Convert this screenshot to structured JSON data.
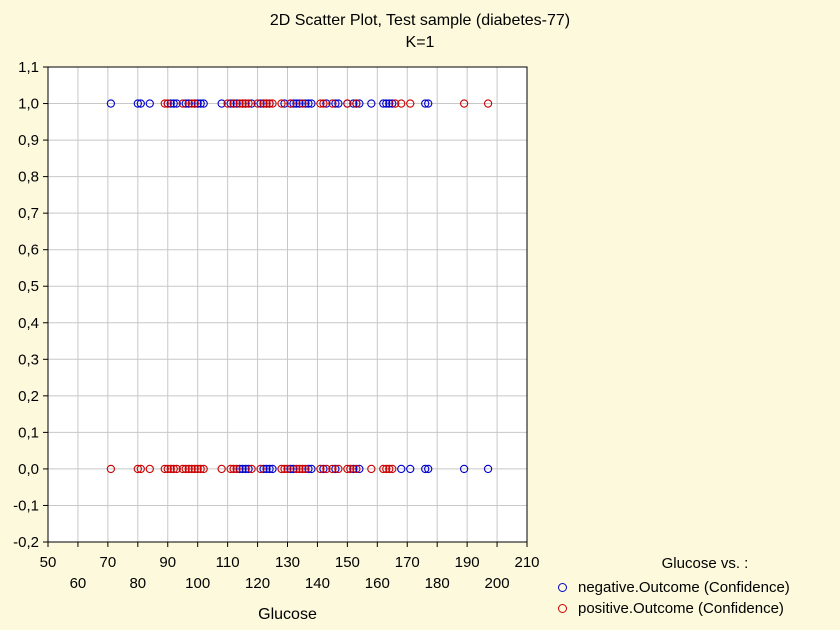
{
  "chart_data": {
    "type": "scatter",
    "title": "2D Scatter Plot, Test sample (diabetes-77)",
    "subtitle": "K=1",
    "xlabel": "Glucose",
    "ylabel": "",
    "xlim": [
      50,
      210
    ],
    "ylim": [
      -0.2,
      1.1
    ],
    "xticks_upper": [
      50,
      70,
      90,
      110,
      130,
      150,
      170,
      190,
      210
    ],
    "xticks_lower": [
      60,
      80,
      100,
      120,
      140,
      160,
      180,
      200
    ],
    "yticks": [
      "-0,2",
      "-0,1",
      "0,0",
      "0,1",
      "0,2",
      "0,3",
      "0,4",
      "0,5",
      "0,6",
      "0,7",
      "0,8",
      "0,9",
      "1,0",
      "1,1"
    ],
    "grid": true,
    "legend_title": "Glucose  vs. :",
    "legend_position": "bottom-right",
    "series": [
      {
        "name": "negative.Outcome (Confidence)",
        "color": "#0000cc",
        "points": [
          [
            71,
            1
          ],
          [
            80,
            1
          ],
          [
            81,
            1
          ],
          [
            84,
            1
          ],
          [
            90,
            1
          ],
          [
            91,
            1
          ],
          [
            92,
            1
          ],
          [
            93,
            1
          ],
          [
            96,
            1
          ],
          [
            97,
            1
          ],
          [
            99,
            1
          ],
          [
            100,
            1
          ],
          [
            101,
            1
          ],
          [
            102,
            1
          ],
          [
            108,
            1
          ],
          [
            111,
            1
          ],
          [
            112,
            1
          ],
          [
            113,
            1
          ],
          [
            115,
            1
          ],
          [
            116,
            1
          ],
          [
            118,
            1
          ],
          [
            121,
            1
          ],
          [
            122,
            1
          ],
          [
            123,
            1
          ],
          [
            124,
            1
          ],
          [
            129,
            1
          ],
          [
            131,
            1
          ],
          [
            132,
            1
          ],
          [
            133,
            1
          ],
          [
            134,
            1
          ],
          [
            136,
            1
          ],
          [
            137,
            1
          ],
          [
            138,
            1
          ],
          [
            143,
            1
          ],
          [
            146,
            1
          ],
          [
            147,
            1
          ],
          [
            150,
            1
          ],
          [
            152,
            1
          ],
          [
            153,
            1
          ],
          [
            154,
            1
          ],
          [
            158,
            1
          ],
          [
            162,
            1
          ],
          [
            163,
            1
          ],
          [
            164,
            1
          ],
          [
            165,
            1
          ],
          [
            176,
            1
          ],
          [
            177,
            1
          ],
          [
            114,
            0
          ],
          [
            115,
            0
          ],
          [
            116,
            0
          ],
          [
            117,
            0
          ],
          [
            122,
            0
          ],
          [
            123,
            0
          ],
          [
            124,
            0
          ],
          [
            125,
            0
          ],
          [
            131,
            0
          ],
          [
            132,
            0
          ],
          [
            137,
            0
          ],
          [
            138,
            0
          ],
          [
            142,
            0
          ],
          [
            146,
            0
          ],
          [
            152,
            0
          ],
          [
            154,
            0
          ],
          [
            168,
            0
          ],
          [
            171,
            0
          ],
          [
            176,
            0
          ],
          [
            177,
            0
          ],
          [
            189,
            0
          ],
          [
            197,
            0
          ]
        ]
      },
      {
        "name": "positive.Outcome (Confidence)",
        "color": "#cc0000",
        "points": [
          [
            89,
            1
          ],
          [
            90,
            1
          ],
          [
            95,
            1
          ],
          [
            98,
            1
          ],
          [
            99,
            1
          ],
          [
            110,
            1
          ],
          [
            112,
            1
          ],
          [
            114,
            1
          ],
          [
            115,
            1
          ],
          [
            116,
            1
          ],
          [
            117,
            1
          ],
          [
            120,
            1
          ],
          [
            122,
            1
          ],
          [
            123,
            1
          ],
          [
            124,
            1
          ],
          [
            125,
            1
          ],
          [
            128,
            1
          ],
          [
            131,
            1
          ],
          [
            135,
            1
          ],
          [
            141,
            1
          ],
          [
            142,
            1
          ],
          [
            145,
            1
          ],
          [
            150,
            1
          ],
          [
            153,
            1
          ],
          [
            166,
            1
          ],
          [
            168,
            1
          ],
          [
            171,
            1
          ],
          [
            189,
            1
          ],
          [
            197,
            1
          ],
          [
            71,
            0
          ],
          [
            80,
            0
          ],
          [
            81,
            0
          ],
          [
            84,
            0
          ],
          [
            89,
            0
          ],
          [
            90,
            0
          ],
          [
            91,
            0
          ],
          [
            92,
            0
          ],
          [
            93,
            0
          ],
          [
            95,
            0
          ],
          [
            96,
            0
          ],
          [
            97,
            0
          ],
          [
            98,
            0
          ],
          [
            99,
            0
          ],
          [
            100,
            0
          ],
          [
            101,
            0
          ],
          [
            102,
            0
          ],
          [
            108,
            0
          ],
          [
            111,
            0
          ],
          [
            112,
            0
          ],
          [
            113,
            0
          ],
          [
            118,
            0
          ],
          [
            121,
            0
          ],
          [
            128,
            0
          ],
          [
            129,
            0
          ],
          [
            130,
            0
          ],
          [
            133,
            0
          ],
          [
            134,
            0
          ],
          [
            135,
            0
          ],
          [
            136,
            0
          ],
          [
            141,
            0
          ],
          [
            143,
            0
          ],
          [
            145,
            0
          ],
          [
            147,
            0
          ],
          [
            150,
            0
          ],
          [
            151,
            0
          ],
          [
            153,
            0
          ],
          [
            158,
            0
          ],
          [
            162,
            0
          ],
          [
            163,
            0
          ],
          [
            164,
            0
          ],
          [
            165,
            0
          ]
        ]
      }
    ]
  }
}
